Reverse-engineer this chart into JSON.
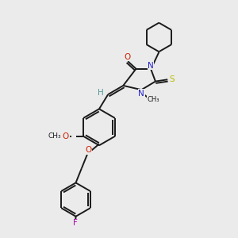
{
  "background_color": "#ebebeb",
  "bond_color": "#1a1a1a",
  "atom_colors": {
    "N": "#2222cc",
    "O": "#cc2200",
    "S": "#bbbb00",
    "F": "#aa00aa",
    "H": "#559999",
    "C": "#1a1a1a"
  },
  "figsize": [
    3.0,
    3.0
  ],
  "dpi": 100
}
